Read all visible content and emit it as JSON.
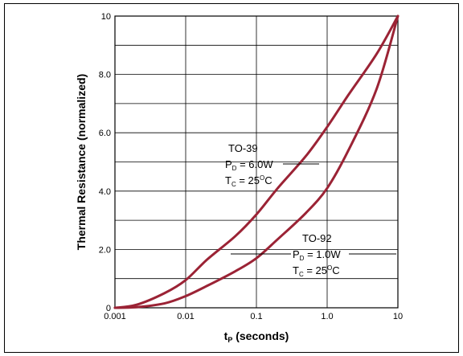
{
  "chart_data": {
    "type": "line",
    "title": "",
    "xlabel": {
      "main": "t",
      "sub": "P",
      "rest": " (seconds)"
    },
    "ylabel": "Thermal Resistance (normalized)",
    "xscale": "log",
    "xlim": [
      0.001,
      10
    ],
    "ylim": [
      0,
      10
    ],
    "grid": true,
    "x_ticks": [
      "0.001",
      "0.01",
      "0.1",
      "1.0",
      "10"
    ],
    "y_ticks": [
      "0",
      "2.0",
      "4.0",
      "6.0",
      "8.0",
      "10"
    ],
    "curve_color": "#9b2335",
    "series": [
      {
        "x": [
          0.001,
          0.002,
          0.005,
          0.01,
          0.02,
          0.05,
          0.1,
          0.2,
          0.5,
          1.0,
          2.0,
          5.0,
          10
        ],
        "y": [
          0,
          0.1,
          0.5,
          0.95,
          1.65,
          2.45,
          3.2,
          4.1,
          5.2,
          6.2,
          7.3,
          8.7,
          10
        ],
        "annotation": {
          "line1": "TO-39",
          "pd_label": "P",
          "pd_sub": "D",
          "pd_val": " = 6.0W",
          "tc_label": "T",
          "tc_sub": "C",
          "tc_val": " = 25",
          "tc_sup": "O",
          "tc_unit": "C"
        }
      },
      {
        "x": [
          0.001,
          0.002,
          0.005,
          0.01,
          0.02,
          0.05,
          0.1,
          0.2,
          0.5,
          1.0,
          2.0,
          5.0,
          10
        ],
        "y": [
          0,
          0.02,
          0.15,
          0.4,
          0.75,
          1.25,
          1.7,
          2.35,
          3.25,
          4.1,
          5.4,
          7.5,
          10
        ],
        "annotation": {
          "line1": "TO-92",
          "pd_label": "P",
          "pd_sub": "D",
          "pd_val": " = 1.0W",
          "tc_label": "T",
          "tc_sub": "C",
          "tc_val": " = 25",
          "tc_sup": "O",
          "tc_unit": "C"
        }
      }
    ]
  }
}
